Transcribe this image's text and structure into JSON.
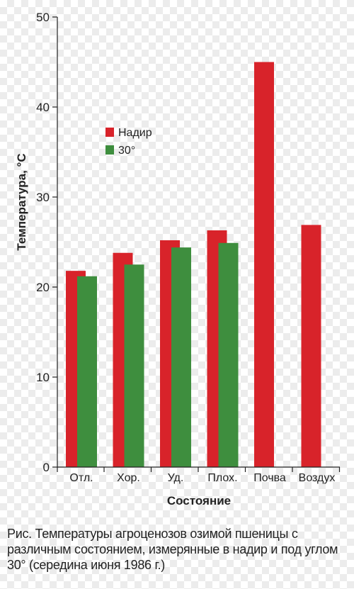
{
  "chart_data": {
    "type": "bar",
    "categories": [
      "Отл.",
      "Хор.",
      "Уд.",
      "Плох.",
      "Почва",
      "Воздух"
    ],
    "series": [
      {
        "name": "Надир",
        "color": "#d8232a",
        "values": [
          21.8,
          23.8,
          25.2,
          26.3,
          45.0,
          26.9
        ]
      },
      {
        "name": "30°",
        "color": "#3e8e3e",
        "values": [
          21.2,
          22.5,
          24.4,
          24.9,
          null,
          null
        ]
      }
    ],
    "xlabel": "Состояние",
    "ylabel": "Температура, °С",
    "ylim": [
      0,
      50
    ],
    "yticks": [
      0,
      10,
      20,
      30,
      40,
      50
    ],
    "legend_position": "upper-left",
    "grid": false
  },
  "caption": "Рис. Температуры агроценозов озимой пшеницы с различным состоянием, измерянные в надир и под углом 30° (середина июня 1986 г.)"
}
